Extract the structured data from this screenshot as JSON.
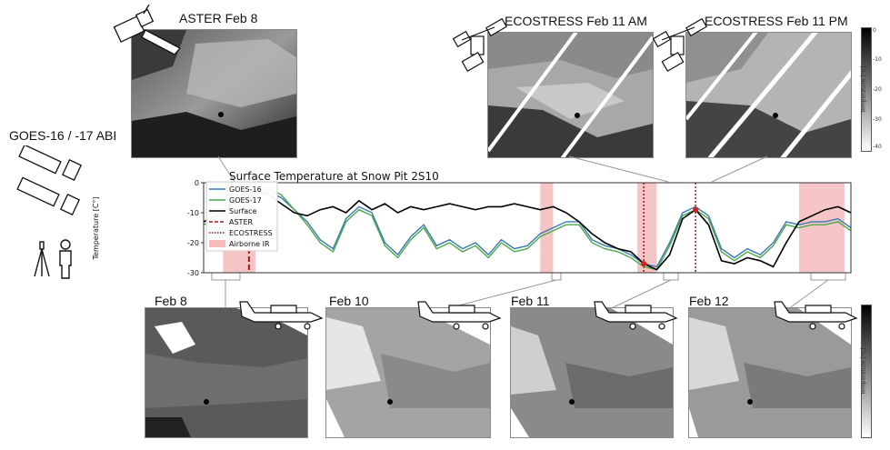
{
  "labels": {
    "aster": "ASTER Feb 8",
    "ecostress_am": "ECOSTRESS Feb 11 AM",
    "ecostress_pm": "ECOSTRESS Feb 11 PM",
    "goes": "GOES-16 / -17 ABI",
    "feb8": "Feb 8",
    "feb10": "Feb 10",
    "feb11": "Feb 11",
    "feb12": "Feb 12"
  },
  "colorbar": {
    "label": "Temperature [°C]",
    "ticks": [
      "0",
      "-10",
      "-20",
      "-30",
      "-40"
    ]
  },
  "colors": {
    "goes16": "#3b78b3",
    "goes17": "#4aa84a",
    "surface": "#000000",
    "aster": "#a01818",
    "ecostress": "#a01818",
    "airborne": "#f4bcbc",
    "marker": "#d02020"
  },
  "chart_data": {
    "type": "line",
    "title": "Surface Temperature at Snow Pit 2S10",
    "ylabel": "Temperature [C°]",
    "xlabel": "",
    "ylim": [
      -30,
      0
    ],
    "yticks": [
      0,
      -10,
      -20,
      -30
    ],
    "xlim": [
      0,
      100
    ],
    "grid": false,
    "legend_position": "upper-left",
    "legend": [
      "GOES-16",
      "GOES-17",
      "Surface",
      "ASTER",
      "ECOSTRESS",
      "Airborne IR"
    ],
    "series": [
      {
        "name": "GOES-16",
        "x": [
          0,
          2,
          4,
          6,
          8,
          10,
          12,
          14,
          16,
          18,
          20,
          22,
          24,
          26,
          28,
          30,
          32,
          34,
          36,
          38,
          40,
          42,
          44,
          46,
          48,
          50,
          52,
          54,
          56,
          58,
          60,
          62,
          64,
          66,
          68,
          70,
          72,
          74,
          76,
          78,
          80,
          82,
          84,
          86,
          88,
          90,
          92,
          94,
          96,
          98,
          100
        ],
        "values": [
          -13,
          -12,
          -10,
          -6,
          -4,
          -3,
          -5,
          -9,
          -13,
          -19,
          -22,
          -12,
          -8,
          -10,
          -20,
          -24,
          -18,
          -14,
          -21,
          -19,
          -22,
          -20,
          -24,
          -19,
          -22,
          -21,
          -17,
          -15,
          -13,
          -13,
          -19,
          -21,
          -22,
          -24,
          -27,
          -28,
          -20,
          -10,
          -8,
          -11,
          -22,
          -25,
          -22,
          -24,
          -20,
          -13,
          -14,
          -13,
          -13,
          -12,
          -15
        ]
      },
      {
        "name": "GOES-17",
        "x": [
          0,
          2,
          4,
          6,
          8,
          10,
          12,
          14,
          16,
          18,
          20,
          22,
          24,
          26,
          28,
          30,
          32,
          34,
          36,
          38,
          40,
          42,
          44,
          46,
          48,
          50,
          52,
          54,
          56,
          58,
          60,
          62,
          64,
          66,
          68,
          70,
          72,
          74,
          76,
          78,
          80,
          82,
          84,
          86,
          88,
          90,
          92,
          94,
          96,
          98,
          100
        ],
        "values": [
          -14,
          -12,
          -9,
          -5,
          -3,
          -2,
          -4,
          -9,
          -14,
          -20,
          -23,
          -13,
          -9,
          -11,
          -21,
          -25,
          -19,
          -15,
          -22,
          -20,
          -23,
          -21,
          -25,
          -20,
          -23,
          -22,
          -18,
          -16,
          -14,
          -14,
          -20,
          -22,
          -23,
          -25,
          -28,
          -29,
          -21,
          -11,
          -9,
          -12,
          -23,
          -26,
          -23,
          -25,
          -21,
          -14,
          -15,
          -14,
          -14,
          -13,
          -16
        ]
      },
      {
        "name": "Surface",
        "x": [
          0,
          2,
          4,
          6,
          8,
          10,
          12,
          14,
          16,
          18,
          20,
          22,
          24,
          26,
          28,
          30,
          32,
          34,
          36,
          38,
          40,
          42,
          44,
          46,
          48,
          50,
          52,
          54,
          56,
          58,
          60,
          62,
          64,
          66,
          68,
          70,
          72,
          74,
          76,
          78,
          80,
          82,
          84,
          86,
          88,
          90,
          92,
          94,
          96,
          98,
          100
        ],
        "values": [
          -13,
          -11,
          -8,
          -4,
          -3,
          -4,
          -7,
          -10,
          -11,
          -9,
          -8,
          -10,
          -6,
          -9,
          -7,
          -10,
          -8,
          -9,
          -8,
          -7,
          -8,
          -9,
          -8,
          -8,
          -7,
          -8,
          -9,
          -8,
          -10,
          -13,
          -17,
          -20,
          -22,
          -23,
          -27,
          -29,
          -24,
          -12,
          -9,
          -14,
          -26,
          -27,
          -25,
          -26,
          -28,
          -20,
          -13,
          -11,
          -9,
          -8,
          -10
        ]
      }
    ],
    "events": {
      "aster": [
        7
      ],
      "ecostress": [
        68,
        76
      ],
      "airborne_ir": [
        [
          3,
          8
        ],
        [
          52,
          54
        ],
        [
          67,
          70
        ],
        [
          92,
          99
        ]
      ]
    }
  }
}
